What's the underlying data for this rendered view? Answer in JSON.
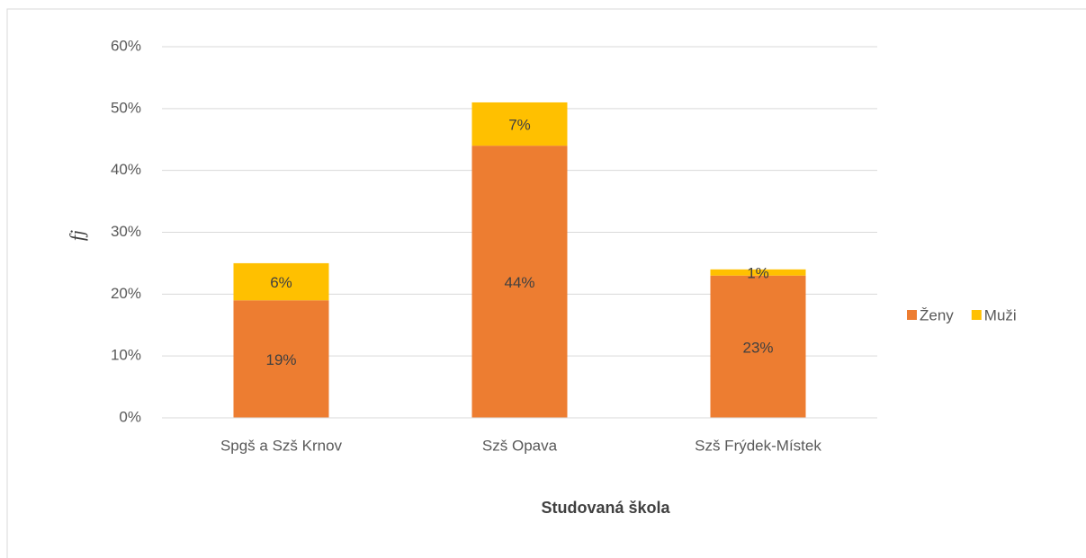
{
  "chart_data": {
    "type": "stacked_bar",
    "xlabel": "Studovaná škola",
    "ylabel": "fj",
    "categories": [
      "Spgš a Szš Krnov",
      "Szš Opava",
      "Szš Frýdek-Místek"
    ],
    "series": [
      {
        "name": "Ženy",
        "color": "#ed7d31",
        "values": [
          19,
          44,
          23
        ],
        "value_labels": [
          "19%",
          "44%",
          "23%"
        ]
      },
      {
        "name": "Muži",
        "color": "#ffc000",
        "values": [
          6,
          7,
          1
        ],
        "value_labels": [
          "6%",
          "7%",
          "1%"
        ]
      }
    ],
    "ylim": [
      0,
      60
    ],
    "yticks": [
      {
        "value": 0,
        "label": "0%"
      },
      {
        "value": 10,
        "label": "10%"
      },
      {
        "value": 20,
        "label": "20%"
      },
      {
        "value": 30,
        "label": "30%"
      },
      {
        "value": 40,
        "label": "40%"
      },
      {
        "value": 50,
        "label": "50%"
      },
      {
        "value": 60,
        "label": "60%"
      }
    ],
    "grid": true,
    "legend": "right"
  }
}
